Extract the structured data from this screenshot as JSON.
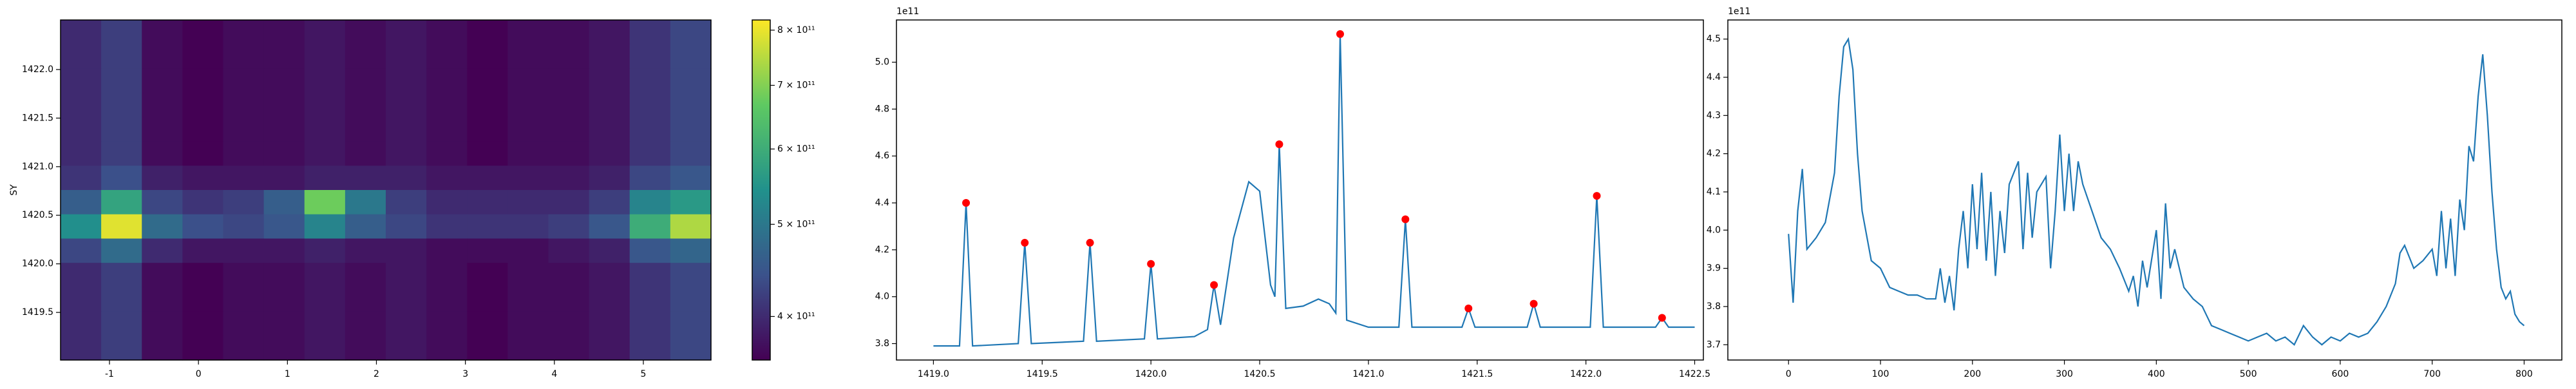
{
  "chart_data": [
    {
      "type": "heatmap",
      "y_label": "SY",
      "xlim": [
        -1.55,
        5.76
      ],
      "xticks": [
        -1,
        0,
        1,
        2,
        3,
        4,
        5
      ],
      "ylim": [
        1419.01,
        1422.51
      ],
      "yticks": [
        {
          "value": 1419.5,
          "label": "1419.5"
        },
        {
          "value": 1420,
          "label": "1420.0"
        },
        1420.5,
        {
          "value": 1421,
          "label": "1421.0"
        },
        1421.5,
        {
          "value": 1422,
          "label": "1422.0"
        }
      ],
      "matrix": [
        [
          400000000000.0,
          420000000000.0,
          370000000000.0,
          360000000000.0,
          370000000000.0,
          370000000000.0,
          380000000000.0,
          370000000000.0,
          380000000000.0,
          370000000000.0,
          360000000000.0,
          370000000000.0,
          370000000000.0,
          380000000000.0,
          410000000000.0,
          430000000000.0
        ],
        [
          400000000000.0,
          420000000000.0,
          370000000000.0,
          360000000000.0,
          370000000000.0,
          370000000000.0,
          380000000000.0,
          370000000000.0,
          380000000000.0,
          370000000000.0,
          360000000000.0,
          370000000000.0,
          370000000000.0,
          380000000000.0,
          410000000000.0,
          430000000000.0
        ],
        [
          400000000000.0,
          420000000000.0,
          370000000000.0,
          360000000000.0,
          370000000000.0,
          370000000000.0,
          380000000000.0,
          370000000000.0,
          380000000000.0,
          370000000000.0,
          360000000000.0,
          370000000000.0,
          370000000000.0,
          380000000000.0,
          410000000000.0,
          430000000000.0
        ],
        [
          400000000000.0,
          420000000000.0,
          370000000000.0,
          360000000000.0,
          370000000000.0,
          370000000000.0,
          380000000000.0,
          370000000000.0,
          380000000000.0,
          370000000000.0,
          360000000000.0,
          370000000000.0,
          370000000000.0,
          380000000000.0,
          410000000000.0,
          430000000000.0
        ],
        [
          400000000000.0,
          420000000000.0,
          370000000000.0,
          360000000000.0,
          370000000000.0,
          370000000000.0,
          380000000000.0,
          370000000000.0,
          380000000000.0,
          370000000000.0,
          360000000000.0,
          370000000000.0,
          370000000000.0,
          380000000000.0,
          410000000000.0,
          430000000000.0
        ],
        [
          400000000000.0,
          420000000000.0,
          370000000000.0,
          360000000000.0,
          370000000000.0,
          370000000000.0,
          380000000000.0,
          370000000000.0,
          380000000000.0,
          370000000000.0,
          360000000000.0,
          370000000000.0,
          370000000000.0,
          380000000000.0,
          410000000000.0,
          430000000000.0
        ],
        [
          410000000000.0,
          440000000000.0,
          390000000000.0,
          380000000000.0,
          380000000000.0,
          380000000000.0,
          390000000000.0,
          390000000000.0,
          390000000000.0,
          380000000000.0,
          380000000000.0,
          380000000000.0,
          380000000000.0,
          390000000000.0,
          430000000000.0,
          450000000000.0
        ],
        [
          460000000000.0,
          580000000000.0,
          430000000000.0,
          410000000000.0,
          420000000000.0,
          460000000000.0,
          680000000000.0,
          500000000000.0,
          420000000000.0,
          400000000000.0,
          400000000000.0,
          400000000000.0,
          400000000000.0,
          420000000000.0,
          520000000000.0,
          560000000000.0
        ],
        [
          540000000000.0,
          790000000000.0,
          480000000000.0,
          440000000000.0,
          430000000000.0,
          450000000000.0,
          520000000000.0,
          460000000000.0,
          430000000000.0,
          410000000000.0,
          410000000000.0,
          410000000000.0,
          420000000000.0,
          450000000000.0,
          600000000000.0,
          740000000000.0
        ],
        [
          430000000000.0,
          480000000000.0,
          400000000000.0,
          380000000000.0,
          380000000000.0,
          380000000000.0,
          390000000000.0,
          380000000000.0,
          380000000000.0,
          370000000000.0,
          370000000000.0,
          370000000000.0,
          380000000000.0,
          390000000000.0,
          450000000000.0,
          470000000000.0
        ],
        [
          400000000000.0,
          420000000000.0,
          370000000000.0,
          360000000000.0,
          370000000000.0,
          370000000000.0,
          380000000000.0,
          370000000000.0,
          380000000000.0,
          370000000000.0,
          360000000000.0,
          370000000000.0,
          370000000000.0,
          380000000000.0,
          410000000000.0,
          430000000000.0
        ],
        [
          400000000000.0,
          420000000000.0,
          370000000000.0,
          360000000000.0,
          370000000000.0,
          370000000000.0,
          380000000000.0,
          370000000000.0,
          380000000000.0,
          370000000000.0,
          360000000000.0,
          370000000000.0,
          370000000000.0,
          380000000000.0,
          410000000000.0,
          430000000000.0
        ],
        [
          400000000000.0,
          420000000000.0,
          370000000000.0,
          360000000000.0,
          370000000000.0,
          370000000000.0,
          380000000000.0,
          370000000000.0,
          380000000000.0,
          370000000000.0,
          360000000000.0,
          370000000000.0,
          370000000000.0,
          380000000000.0,
          410000000000.0,
          430000000000.0
        ],
        [
          400000000000.0,
          420000000000.0,
          370000000000.0,
          360000000000.0,
          370000000000.0,
          370000000000.0,
          380000000000.0,
          370000000000.0,
          380000000000.0,
          370000000000.0,
          360000000000.0,
          370000000000.0,
          370000000000.0,
          380000000000.0,
          410000000000.0,
          430000000000.0
        ]
      ],
      "colorbar": {
        "scale": "log",
        "lim": [
          360000000000.0,
          820000000000.0
        ],
        "colormap": "viridis",
        "ticks": [
          {
            "value": 400000000000.0,
            "label": "4 × 10¹¹"
          },
          {
            "value": 500000000000.0,
            "label": "5 × 10¹¹"
          },
          {
            "value": 600000000000.0,
            "label": "6 × 10¹¹"
          },
          {
            "value": 700000000000.0,
            "label": "7 × 10¹¹"
          },
          {
            "value": 800000000000.0,
            "label": "8 × 10¹¹"
          }
        ]
      }
    },
    {
      "type": "line",
      "color": "#1f77b4",
      "offset_label": "1e11",
      "xlim": [
        1418.83,
        1422.54
      ],
      "xticks": [
        {
          "value": 1419,
          "label": "1419.0"
        },
        1419.5,
        {
          "value": 1420,
          "label": "1420.0"
        },
        1420.5,
        {
          "value": 1421,
          "label": "1421.0"
        },
        1421.5,
        {
          "value": 1422,
          "label": "1422.0"
        },
        1422.5
      ],
      "ylim": [
        3.73,
        5.18
      ],
      "yticks": [
        3.8,
        {
          "value": 4,
          "label": "4.0"
        },
        4.2,
        4.4,
        4.6,
        4.8,
        {
          "value": 5,
          "label": "5.0"
        }
      ],
      "x": [
        1419.0,
        1419.12,
        1419.15,
        1419.18,
        1419.39,
        1419.42,
        1419.45,
        1419.69,
        1419.72,
        1419.75,
        1419.97,
        1420.0,
        1420.03,
        1420.2,
        1420.26,
        1420.29,
        1420.32,
        1420.38,
        1420.45,
        1420.5,
        1420.55,
        1420.57,
        1420.59,
        1420.62,
        1420.7,
        1420.77,
        1420.82,
        1420.85,
        1420.87,
        1420.9,
        1421.0,
        1421.14,
        1421.17,
        1421.2,
        1421.43,
        1421.46,
        1421.49,
        1421.73,
        1421.76,
        1421.79,
        1422.02,
        1422.05,
        1422.08,
        1422.32,
        1422.35,
        1422.38,
        1422.5
      ],
      "values": [
        3.79,
        3.79,
        4.4,
        3.79,
        3.8,
        4.23,
        3.8,
        3.81,
        4.23,
        3.81,
        3.82,
        4.14,
        3.82,
        3.83,
        3.86,
        4.05,
        3.88,
        4.25,
        4.49,
        4.45,
        4.05,
        4.0,
        4.65,
        3.95,
        3.96,
        3.99,
        3.97,
        3.93,
        5.12,
        3.9,
        3.87,
        3.87,
        4.33,
        3.87,
        3.87,
        3.95,
        3.87,
        3.87,
        3.97,
        3.87,
        3.87,
        4.43,
        3.87,
        3.87,
        3.91,
        3.87,
        3.87
      ],
      "peaks": {
        "color": "#ff0000",
        "x": [
          1419.15,
          1419.42,
          1419.72,
          1420.0,
          1420.29,
          1420.59,
          1420.87,
          1421.17,
          1421.46,
          1421.76,
          1422.05,
          1422.35
        ],
        "values": [
          4.4,
          4.23,
          4.23,
          4.14,
          4.05,
          4.65,
          5.12,
          4.33,
          3.95,
          3.97,
          4.43,
          3.91
        ]
      }
    },
    {
      "type": "line",
      "color": "#1f77b4",
      "offset_label": "1e11",
      "xlim": [
        -66,
        841
      ],
      "xticks": [
        0,
        100,
        200,
        300,
        400,
        500,
        600,
        700,
        800
      ],
      "ylim": [
        3.66,
        4.55
      ],
      "yticks": [
        3.7,
        3.8,
        3.9,
        {
          "value": 4,
          "label": "4.0"
        },
        4.1,
        4.2,
        4.3,
        4.4,
        4.5
      ],
      "x": [
        0,
        5,
        10,
        15,
        20,
        30,
        40,
        50,
        55,
        60,
        65,
        70,
        75,
        80,
        90,
        100,
        110,
        120,
        130,
        140,
        150,
        160,
        165,
        170,
        175,
        180,
        185,
        190,
        195,
        200,
        205,
        210,
        215,
        220,
        225,
        230,
        235,
        240,
        250,
        255,
        260,
        265,
        270,
        280,
        285,
        290,
        295,
        300,
        305,
        310,
        315,
        320,
        330,
        340,
        350,
        360,
        370,
        375,
        380,
        385,
        390,
        400,
        405,
        410,
        415,
        420,
        430,
        440,
        450,
        460,
        470,
        480,
        490,
        500,
        510,
        520,
        530,
        540,
        550,
        560,
        570,
        580,
        590,
        600,
        610,
        620,
        630,
        640,
        650,
        660,
        665,
        670,
        680,
        690,
        700,
        705,
        710,
        715,
        720,
        725,
        730,
        735,
        740,
        745,
        750,
        755,
        760,
        765,
        770,
        775,
        780,
        785,
        790,
        795,
        800
      ],
      "values": [
        3.99,
        3.81,
        4.05,
        4.16,
        3.95,
        3.98,
        4.02,
        4.15,
        4.35,
        4.48,
        4.5,
        4.42,
        4.2,
        4.05,
        3.92,
        3.9,
        3.85,
        3.84,
        3.83,
        3.83,
        3.82,
        3.82,
        3.9,
        3.81,
        3.88,
        3.79,
        3.95,
        4.05,
        3.9,
        4.12,
        3.95,
        4.15,
        3.92,
        4.1,
        3.88,
        4.05,
        3.94,
        4.12,
        4.18,
        3.95,
        4.15,
        3.98,
        4.1,
        4.14,
        3.9,
        4.05,
        4.25,
        4.05,
        4.2,
        4.05,
        4.18,
        4.12,
        4.05,
        3.98,
        3.95,
        3.9,
        3.84,
        3.88,
        3.8,
        3.92,
        3.85,
        4.0,
        3.82,
        4.07,
        3.9,
        3.95,
        3.85,
        3.82,
        3.8,
        3.75,
        3.74,
        3.73,
        3.72,
        3.71,
        3.72,
        3.73,
        3.71,
        3.72,
        3.7,
        3.75,
        3.72,
        3.7,
        3.72,
        3.71,
        3.73,
        3.72,
        3.73,
        3.76,
        3.8,
        3.86,
        3.94,
        3.96,
        3.9,
        3.92,
        3.95,
        3.88,
        4.05,
        3.9,
        4.03,
        3.88,
        4.08,
        4.0,
        4.22,
        4.18,
        4.35,
        4.46,
        4.3,
        4.1,
        3.95,
        3.85,
        3.82,
        3.84,
        3.78,
        3.76,
        3.75
      ]
    }
  ]
}
